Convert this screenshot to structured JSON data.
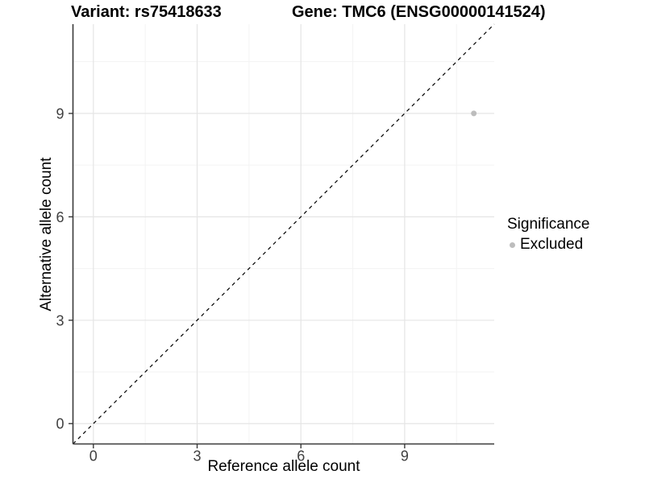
{
  "chart_data": {
    "type": "scatter",
    "title_left": "Variant: rs75418633",
    "title_right": "Gene: TMC6 (ENSG00000141524)",
    "xlabel": "Reference allele count",
    "ylabel": "Alternative allele count",
    "xlim": [
      -0.59,
      11.59
    ],
    "ylim": [
      -0.59,
      11.59
    ],
    "x_major_ticks": [
      0,
      3,
      6,
      9
    ],
    "y_major_ticks": [
      0,
      3,
      6,
      9
    ],
    "x_minor_ticks": [
      1.5,
      4.5,
      7.5,
      10.5
    ],
    "y_minor_ticks": [
      1.5,
      4.5,
      7.5,
      10.5
    ],
    "grid": true,
    "legend_position": "right-middle",
    "series": [
      {
        "name": "Excluded",
        "color": "#bdbdbd",
        "marker_radius": 3.5,
        "points": [
          [
            11,
            9
          ]
        ]
      }
    ],
    "reference_line": {
      "type": "identity y=x",
      "from": [
        -0.59,
        -0.59
      ],
      "to": [
        11.59,
        11.59
      ],
      "style": "dashed",
      "color": "#000000"
    }
  },
  "legend": {
    "title": "Significance",
    "items": [
      {
        "label": "Excluded",
        "color": "#bdbdbd"
      }
    ]
  },
  "colors": {
    "background": "#ffffff",
    "grid_major": "#e5e5e5",
    "grid_minor": "#f3f3f3",
    "axis_line": "#3a3a3a",
    "tick_text": "#404040",
    "point": "#bdbdbd",
    "dashed_line": "#000000"
  }
}
